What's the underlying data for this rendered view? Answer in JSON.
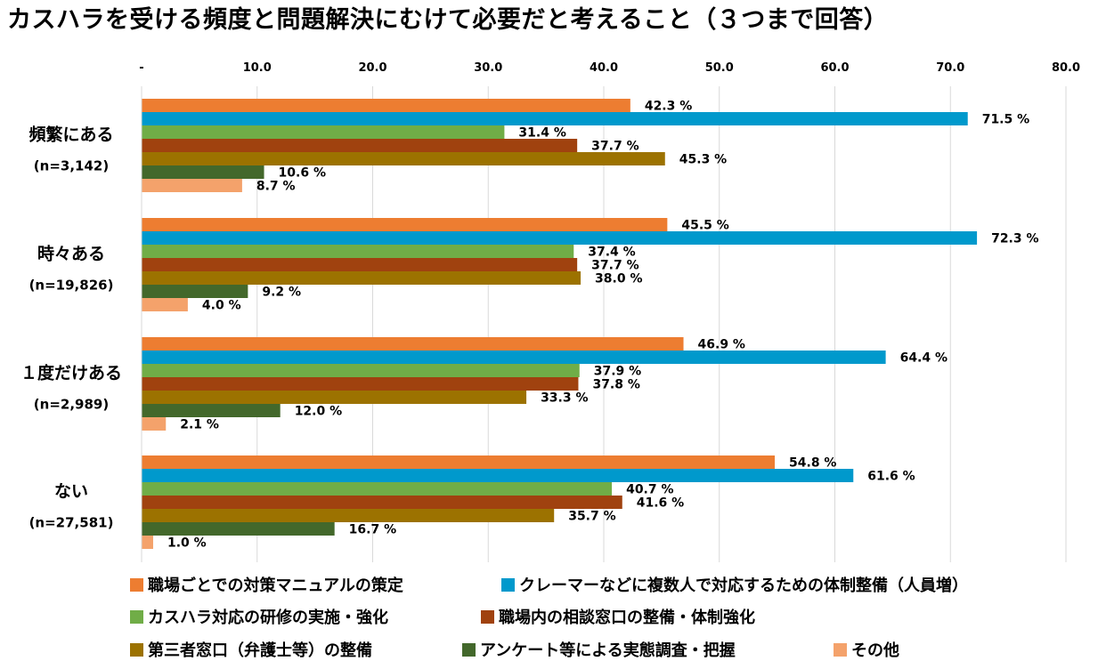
{
  "chart_data": {
    "type": "bar",
    "orientation": "horizontal",
    "title": "カスハラを受ける頻度と問題解決にむけて必要だと考えること（３つまで回答）",
    "x_ticks": [
      "-",
      "10.0",
      "20.0",
      "30.0",
      "40.0",
      "50.0",
      "60.0",
      "70.0",
      "80.0"
    ],
    "xlim": [
      0,
      80
    ],
    "grid": true,
    "legend_position": "bottom",
    "value_suffix": " %",
    "groups": [
      {
        "label": "頻繁にある",
        "sublabel": "(n=3,142)"
      },
      {
        "label": "時々ある",
        "sublabel": "(n=19,826)"
      },
      {
        "label": "１度だけある",
        "sublabel": "(n=2,989)"
      },
      {
        "label": "ない",
        "sublabel": "(n=27,581)"
      }
    ],
    "series": [
      {
        "name": "職場ごとでの対策マニュアルの策定",
        "color": "#ED7D31",
        "values": [
          42.3,
          45.5,
          46.9,
          54.8
        ],
        "labels": [
          "42.3",
          "45.5",
          "46.9",
          "54.8"
        ]
      },
      {
        "name": "クレーマーなどに複数人で対応するための体制整備（人員増）",
        "color": "#0099CC",
        "values": [
          71.5,
          72.3,
          64.4,
          61.6
        ],
        "labels": [
          "71.5",
          "72.3",
          "64.4",
          "61.6"
        ]
      },
      {
        "name": "カスハラ対応の研修の実施・強化",
        "color": "#70AD47",
        "values": [
          31.4,
          37.4,
          37.9,
          40.7
        ],
        "labels": [
          "31.4",
          "37.4",
          "37.9",
          "40.7"
        ]
      },
      {
        "name": "職場内の相談窓口の整備・体制強化",
        "color": "#A0420F",
        "values": [
          37.7,
          37.7,
          37.8,
          41.6
        ],
        "labels": [
          "37.7",
          "37.7",
          "37.8",
          "41.6"
        ]
      },
      {
        "name": "第三者窓口（弁護士等）の整備",
        "color": "#9C7200",
        "values": [
          45.3,
          38.0,
          33.3,
          35.7
        ],
        "labels": [
          "45.3",
          "38.0",
          "33.3",
          "35.7"
        ]
      },
      {
        "name": "アンケート等による実態調査・把握",
        "color": "#43682B",
        "values": [
          10.6,
          9.2,
          12.0,
          16.7
        ],
        "labels": [
          "10.6",
          "9.2",
          "12.0",
          "16.7"
        ]
      },
      {
        "name": "その他",
        "color": "#F4A26B",
        "values": [
          8.7,
          4.0,
          2.1,
          1.0
        ],
        "labels": [
          "8.7",
          "4.0",
          "2.1",
          "1.0"
        ]
      }
    ]
  }
}
